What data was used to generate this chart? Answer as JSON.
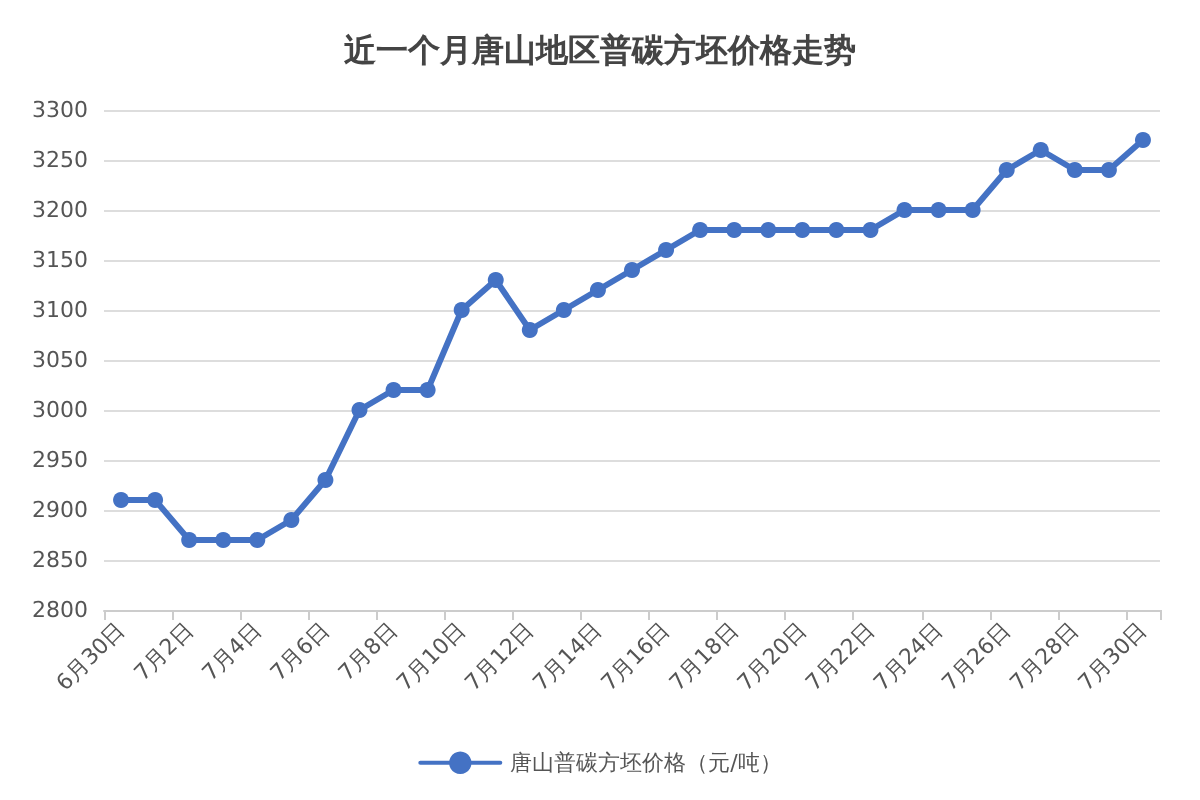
{
  "chart_data": {
    "type": "line",
    "title": "近一个月唐山地区普碳方坯价格走势",
    "categories": [
      "6月30日",
      null,
      "7月2日",
      null,
      "7月4日",
      null,
      "7月6日",
      null,
      "7月8日",
      null,
      "7月10日",
      null,
      "7月12日",
      null,
      "7月14日",
      null,
      "7月16日",
      null,
      "7月18日",
      null,
      "7月20日",
      null,
      "7月22日",
      null,
      "7月24日",
      null,
      "7月26日",
      null,
      "7月28日",
      null,
      "7月30日"
    ],
    "series": [
      {
        "name": "唐山普碳方坯价格（元/吨）",
        "color": "#4472c4",
        "values": [
          2910,
          2910,
          2870,
          2870,
          2870,
          2890,
          2930,
          3000,
          3020,
          3020,
          3100,
          3130,
          3080,
          3100,
          3120,
          3140,
          3160,
          3180,
          3180,
          3180,
          3180,
          3180,
          3180,
          3200,
          3200,
          3200,
          3240,
          3260,
          3240,
          3240,
          3270
        ]
      }
    ],
    "ylim": [
      2800,
      3300
    ],
    "yticks": [
      2800,
      2850,
      2900,
      2950,
      3000,
      3050,
      3100,
      3150,
      3200,
      3250,
      3300
    ],
    "grid": "y",
    "legend": "bottom",
    "marker": "circle",
    "line_style": "solid"
  }
}
